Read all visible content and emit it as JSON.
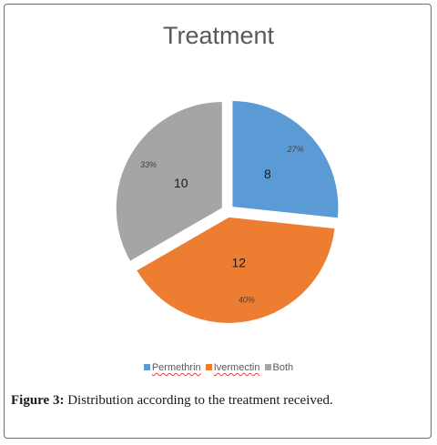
{
  "chart_data": {
    "type": "pie",
    "title": "Treatment",
    "series": [
      {
        "name": "Permethrin",
        "value": 8,
        "percent": "27%",
        "color": "#5b9bd5"
      },
      {
        "name": "Ivermectin",
        "value": 12,
        "percent": "40%",
        "color": "#ed7d31"
      },
      {
        "name": "Both",
        "value": 10,
        "percent": "33%",
        "color": "#a5a5a5"
      }
    ],
    "legend_position": "bottom"
  },
  "caption": {
    "label": "Figure 3:",
    "text": " Distribution according to the treatment received."
  }
}
